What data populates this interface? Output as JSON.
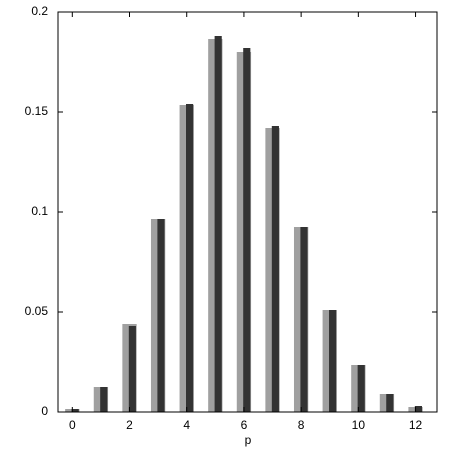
{
  "chart_data": {
    "type": "bar",
    "xlabel": "p",
    "x": [
      0,
      1,
      2,
      3,
      4,
      5,
      6,
      7,
      8,
      9,
      10,
      11,
      12
    ],
    "series": [
      {
        "color": "#a0a0a0",
        "values": [
          0.0015,
          0.0125,
          0.044,
          0.0965,
          0.1535,
          0.1865,
          0.18,
          0.142,
          0.0925,
          0.051,
          0.0235,
          0.009,
          0.0025
        ]
      },
      {
        "color": "#333333",
        "values": [
          0.0015,
          0.0125,
          0.043,
          0.0965,
          0.154,
          0.188,
          0.182,
          0.143,
          0.0925,
          0.051,
          0.0235,
          0.009,
          0.003
        ]
      }
    ],
    "xlim": [
      -0.5,
      12.75
    ],
    "xticks": [
      0,
      2,
      4,
      6,
      8,
      10,
      12
    ],
    "ylim": [
      0,
      0.2
    ],
    "yticks": [
      0,
      0.05,
      0.1,
      0.15,
      0.2
    ]
  }
}
